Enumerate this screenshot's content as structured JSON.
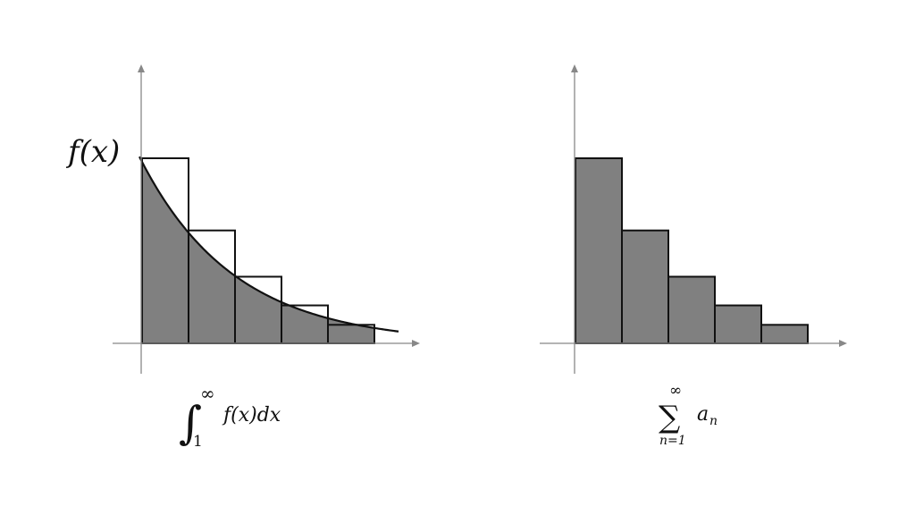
{
  "colors": {
    "fill": "#808080",
    "stroke": "#111111",
    "axis": "#888888"
  },
  "left_panel": {
    "function_label": "f(x)",
    "integral": {
      "upper": "∞",
      "lower": "1",
      "integrand": "f(x)dx"
    },
    "outline_bar_heights": [
      1.0,
      0.61,
      0.36,
      0.205,
      0.1
    ],
    "curve": {
      "description_values_at_bar_edges": [
        1.0,
        0.61,
        0.36,
        0.205,
        0.1
      ]
    }
  },
  "right_panel": {
    "sum": {
      "upper": "∞",
      "lower": "n=1",
      "term": "a",
      "subscript": "n"
    },
    "bar_heights": [
      1.0,
      0.61,
      0.36,
      0.205,
      0.1
    ]
  }
}
